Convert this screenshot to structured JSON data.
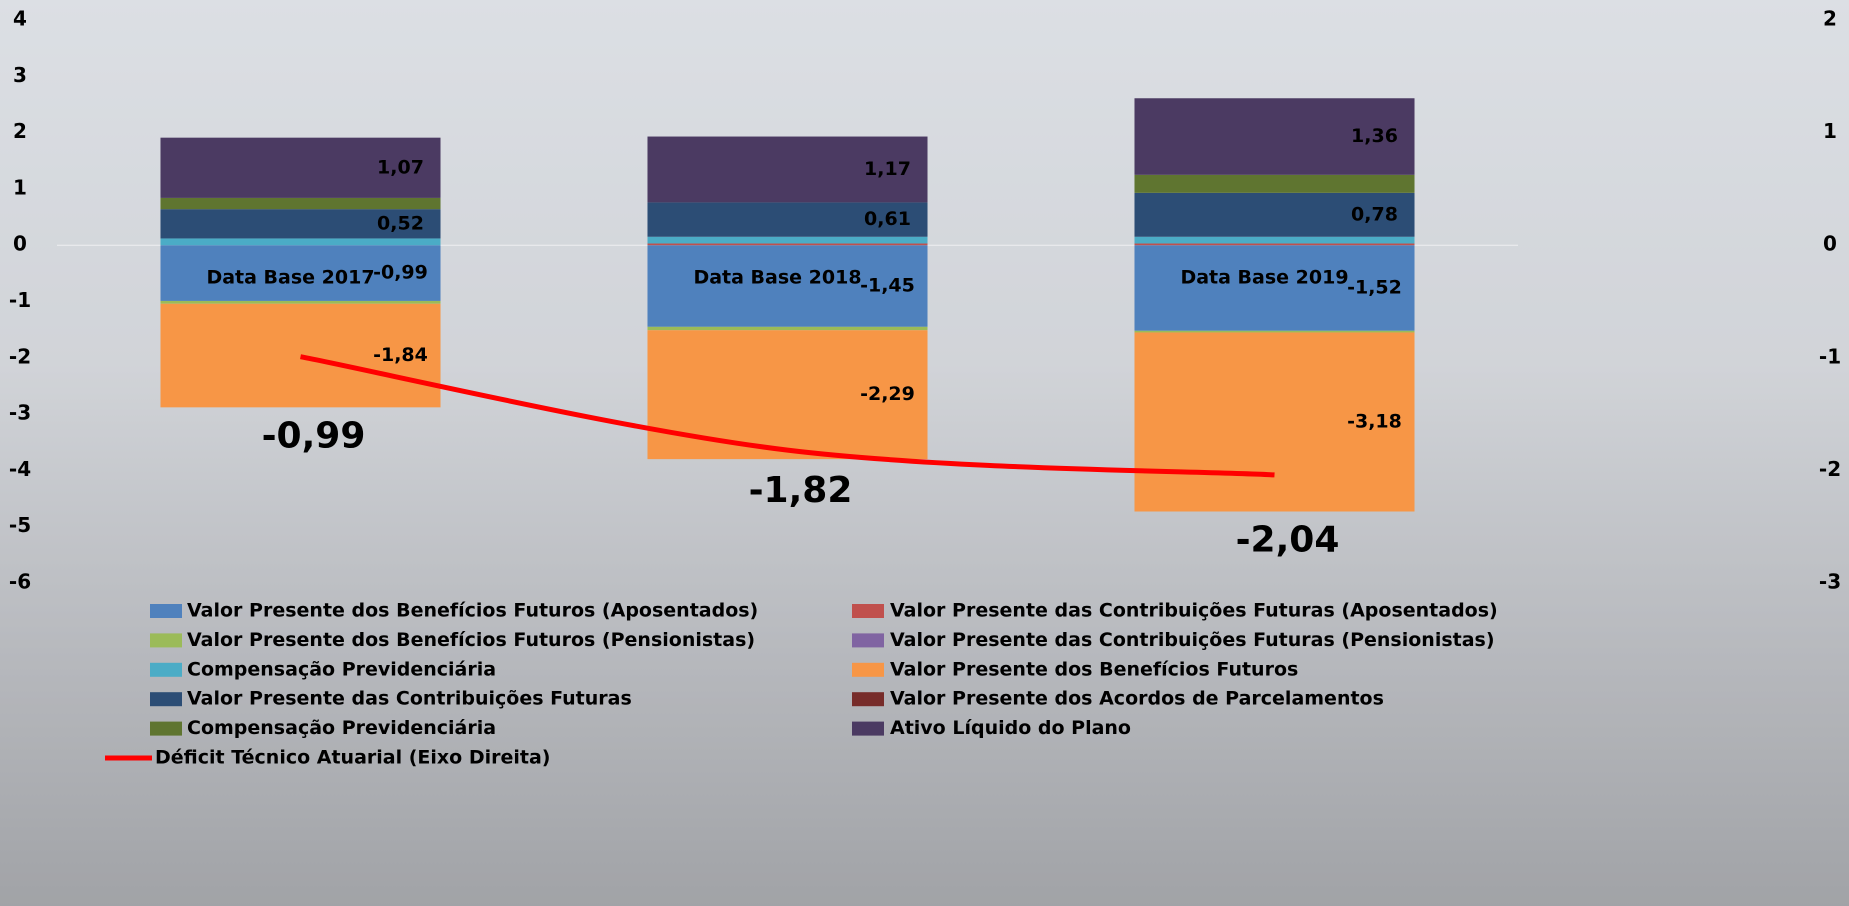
{
  "chart_data": {
    "type": "bar",
    "stacked": true,
    "categories": [
      "Data Base 2017",
      "Data Base 2018",
      "Data Base 2019"
    ],
    "ylim": [
      -6,
      4
    ],
    "yticks": [
      -6,
      -5,
      -4,
      -3,
      -2,
      -1,
      0,
      1,
      2,
      3,
      4
    ],
    "y2lim": [
      -3,
      2
    ],
    "y2ticks": [
      -3,
      -2,
      -1,
      0,
      1,
      2
    ],
    "series": [
      {
        "name": "Valor Presente dos Benefícios Futuros (Aposentados)",
        "color": "#4f81bd",
        "values": [
          -0.99,
          -1.45,
          -1.52
        ],
        "value_labels": [
          "-0,99",
          "-1,45",
          "-1,52"
        ]
      },
      {
        "name": "Valor Presente das Contribuições Futuras (Aposentados)",
        "color": "#c0504d",
        "values": [
          0,
          0.03,
          0.03
        ]
      },
      {
        "name": "Valor Presente dos Benefícios Futuros (Pensionistas)",
        "color": "#9bbb59",
        "values": [
          -0.05,
          -0.06,
          -0.03
        ]
      },
      {
        "name": "Valor Presente das Contribuições Futuras (Pensionistas)",
        "color": "#8064a2",
        "values": [
          0,
          0,
          0
        ]
      },
      {
        "name": "Compensação Previdenciária",
        "color": "#4bacc6",
        "values": [
          0.12,
          0.12,
          0.12
        ]
      },
      {
        "name": "Valor Presente dos Benefícios Futuros",
        "color": "#f79646",
        "values": [
          -1.84,
          -2.29,
          -3.18
        ],
        "value_labels": [
          "-1,84",
          "-2,29",
          "-3,18"
        ]
      },
      {
        "name": "Valor Presente das Contribuições Futuras",
        "color": "#2c4d75",
        "values": [
          0.52,
          0.61,
          0.78
        ],
        "value_labels": [
          "0,52",
          "0,61",
          "0,78"
        ]
      },
      {
        "name": "Valor Presente dos Acordos de Parcelamentos",
        "color": "#772c2a",
        "values": [
          0,
          0,
          0
        ]
      },
      {
        "name": "Compensação Previdenciária",
        "color": "#5f7530",
        "values": [
          0.2,
          0,
          0.32
        ]
      },
      {
        "name": "Ativo Líquido do Plano",
        "color": "#4b3a62",
        "values": [
          1.07,
          1.17,
          1.36
        ],
        "value_labels": [
          "1,07",
          "1,17",
          "1,36"
        ]
      },
      {
        "name": "Déficit Técnico Atuarial (Eixo Direita)",
        "type": "line",
        "axis": "y2",
        "color": "#ff0000",
        "values": [
          -0.99,
          -1.82,
          -2.04
        ],
        "value_labels": [
          "-0,99",
          "-1,82",
          "-2,04"
        ]
      }
    ]
  }
}
